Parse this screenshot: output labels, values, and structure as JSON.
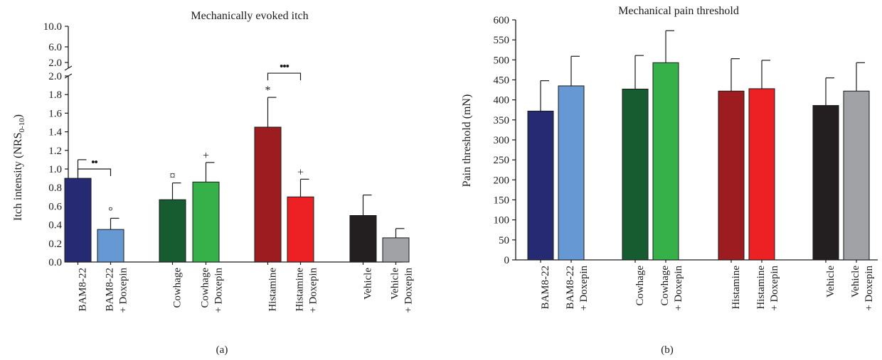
{
  "chart_data": [
    {
      "type": "bar",
      "panel_label": "(a)",
      "title": "Mechanically evoked itch",
      "ylabel": "Itch intensity (NRS",
      "ylabel_sub": "0-10",
      "ylabel_close": ")",
      "ylim": [
        0,
        2.0
      ],
      "yticks": [
        0.0,
        0.2,
        0.4,
        0.6,
        0.8,
        1.0,
        1.2,
        1.4,
        1.6,
        1.8,
        2.0
      ],
      "ytick_labels": [
        "0.0",
        "0.2",
        "0.4",
        "0.6",
        "0.8",
        "1.0",
        "1.2",
        "1.4",
        "1.6",
        "1.8",
        "2.0"
      ],
      "y_break_upper_ticks": [
        {
          "value": 2.0,
          "label": "2.0"
        },
        {
          "value": 6.0,
          "label": "6.0"
        },
        {
          "value": 10.0,
          "label": "10.0"
        }
      ],
      "categories": [
        {
          "line1": "BAM8-22",
          "line2": ""
        },
        {
          "line1": "BAM8-22",
          "line2": "+ Doxepin"
        },
        {
          "line1": "Cowhage",
          "line2": ""
        },
        {
          "line1": "Cowhage",
          "line2": "+ Doxepin"
        },
        {
          "line1": "Histamine",
          "line2": ""
        },
        {
          "line1": "Histamine",
          "line2": "+ Doxepin"
        },
        {
          "line1": "Vehicle",
          "line2": ""
        },
        {
          "line1": "Vehicle",
          "line2": "+ Doxepin"
        }
      ],
      "values": [
        0.9,
        0.35,
        0.67,
        0.86,
        1.45,
        0.7,
        0.5,
        0.26
      ],
      "errors": [
        0.2,
        0.12,
        0.18,
        0.21,
        0.32,
        0.19,
        0.22,
        0.1
      ],
      "colors": [
        "#262a72",
        "#6698d3",
        "#175c31",
        "#36b14a",
        "#9c1c20",
        "#ed2024",
        "#231f20",
        "#a0a2a5"
      ],
      "bar_marks": [
        "",
        "°",
        "¤",
        "+",
        "*",
        "+",
        "",
        ""
      ],
      "significance": [
        {
          "from": 0,
          "to": 1,
          "label": "••",
          "y": 1.0
        },
        {
          "from": 4,
          "to": 5,
          "label": "•••",
          "y": 2.03
        }
      ]
    },
    {
      "type": "bar",
      "panel_label": "(b)",
      "title": "Mechanical pain threshold",
      "ylabel": "Pain threshold (mN)",
      "ylim": [
        0,
        600
      ],
      "yticks": [
        0,
        50,
        100,
        150,
        200,
        250,
        300,
        350,
        400,
        450,
        500,
        550,
        600
      ],
      "ytick_labels": [
        "0",
        "50",
        "100",
        "150",
        "200",
        "250",
        "300",
        "350",
        "400",
        "450",
        "500",
        "550",
        "600"
      ],
      "categories": [
        {
          "line1": "BAM8-22",
          "line2": ""
        },
        {
          "line1": "BAM8-22",
          "line2": "+ Doxepin"
        },
        {
          "line1": "Cowhage",
          "line2": ""
        },
        {
          "line1": "Cowhage",
          "line2": "+ Doxepin"
        },
        {
          "line1": "Histamine",
          "line2": ""
        },
        {
          "line1": "Histamine",
          "line2": "+ Doxepin"
        },
        {
          "line1": "Vehicle",
          "line2": ""
        },
        {
          "line1": "Vehicle",
          "line2": "+ Doxepin"
        }
      ],
      "values": [
        372,
        435,
        427,
        493,
        422,
        428,
        386,
        422
      ],
      "errors": [
        76,
        74,
        84,
        80,
        81,
        71,
        69,
        71
      ],
      "colors": [
        "#262a72",
        "#6698d3",
        "#175c31",
        "#36b14a",
        "#9c1c20",
        "#ed2024",
        "#231f20",
        "#a0a2a5"
      ]
    }
  ]
}
